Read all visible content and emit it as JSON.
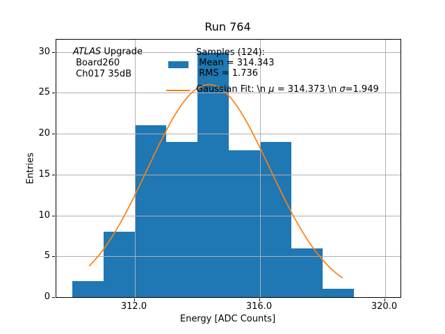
{
  "title": "Run 764",
  "xlabel": "Energy [ADC Counts]",
  "ylabel": "Entries",
  "annotation": {
    "line1_italic": "ATLAS",
    "line1_rest": " Upgrade",
    "line2": " Board260",
    "line3": " Ch017 35dB"
  },
  "legend": {
    "samples_line1": "Samples (124):",
    "samples_line2": " Mean = 314.343",
    "samples_line3": " RMS = 1.736",
    "gauss_prefix": "Gaussian Fit: \\n ",
    "gauss_mu_symbol": "μ",
    "gauss_mid": " = 314.373 \\n ",
    "gauss_sigma_symbol": "σ",
    "gauss_suffix": "=1.949"
  },
  "colors": {
    "bar": "#1f77b4",
    "curve": "#ff7f0e",
    "grid": "#b0b0b0",
    "axis": "#000000"
  },
  "chart_data": {
    "type": "bar",
    "subtype": "histogram-with-gaussian-fit",
    "title": "Run 764",
    "xlabel": "Energy [ADC Counts]",
    "ylabel": "Entries",
    "xlim": [
      309.5,
      320.5
    ],
    "ylim": [
      0,
      31.5
    ],
    "xticks": [
      312.0,
      316.0,
      320.0
    ],
    "xtick_labels": [
      "312.0",
      "316.0",
      "320.0"
    ],
    "yticks": [
      0,
      5,
      10,
      15,
      20,
      25,
      30
    ],
    "ytick_labels": [
      "0",
      "5",
      "10",
      "15",
      "20",
      "25",
      "30"
    ],
    "grid": true,
    "legend_position": "upper-center-frameless",
    "bins": {
      "start": 310,
      "width": 1,
      "edges": [
        310,
        311,
        312,
        313,
        314,
        315,
        316,
        317,
        318,
        319,
        320
      ],
      "counts": [
        2,
        8,
        21,
        19,
        30,
        18,
        19,
        6,
        1,
        0
      ]
    },
    "n_samples": 124,
    "mean": 314.343,
    "rms": 1.736,
    "gaussian_fit": {
      "amplitude": 26.0,
      "mu": 314.373,
      "sigma": 1.949,
      "x_start": 310.55,
      "x_end": 318.65
    }
  }
}
